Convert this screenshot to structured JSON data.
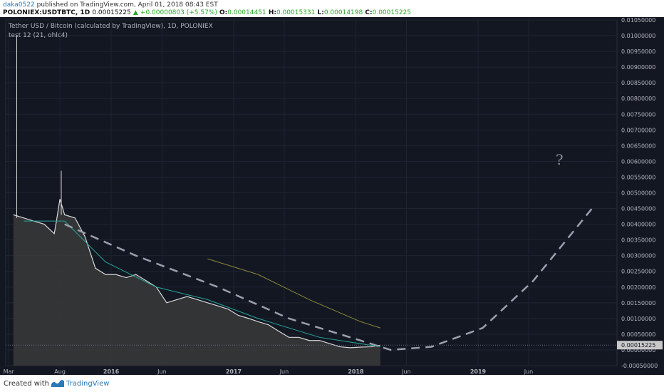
{
  "header": {
    "user": "daka0522",
    "published": "published on TradingView.com, April 01, 2018 08:43 EST",
    "symbol": "POLONIEX:USDTBTC, 1D",
    "last": "0.00015225",
    "change_arrow": "▲",
    "change": "+0.00000803 (+5.57%)",
    "o_label": "O:",
    "o_value": "0.00014451",
    "h_label": "H:",
    "h_value": "0.00015331",
    "l_label": "L:",
    "l_value": "0.00014198",
    "c_label": "C:",
    "c_value": "0.00015225"
  },
  "legend": {
    "title": "Tether USD / Bitcoin (calculated by TradingView), 1D, POLONIEX",
    "indicator": "test 12 (21, ohlc4)"
  },
  "annotation": "?",
  "footer": {
    "created": "Created with",
    "brand": "TradingView",
    "logo_icon": "tradingview-logo-icon"
  },
  "colors": {
    "background": "#131722",
    "grid": "#1f2431",
    "price_line": "#d9d9d9",
    "area_fill": "#3a3a3a",
    "teal": "#26a69a",
    "olive": "#8a8a3c",
    "pink": "#c2407a",
    "dashed": "#9aa0ac",
    "axis_text": "#b2b5be",
    "last_tag": "#c8c8c8"
  },
  "chart_data": {
    "type": "line",
    "title": "Tether USD / Bitcoin (calculated by TradingView), 1D, POLONIEX",
    "y_scale": "linear",
    "ylim": [
      -0.0005,
      0.0105
    ],
    "y_ticks": [
      "0.01050000",
      "0.01000000",
      "0.00950000",
      "0.00900000",
      "0.00850000",
      "0.00800000",
      "0.00750000",
      "0.00700000",
      "0.00650000",
      "0.00600000",
      "0.00550000",
      "0.00500000",
      "0.00450000",
      "0.00400000",
      "0.00350000",
      "0.00300000",
      "0.00250000",
      "0.00200000",
      "0.00150000",
      "0.00100000",
      "0.00050000",
      "0.00000000",
      "-0.00050000"
    ],
    "x_ticks": [
      "Mar",
      "Aug",
      "2016",
      "Jun",
      "2017",
      "Jun",
      "2018",
      "Jun",
      "2019",
      "Jun"
    ],
    "last_price_label": "0.00015225",
    "last_price": 0.00015225,
    "series": [
      {
        "kind": "price",
        "x": [
          "2015-03",
          "2015-04",
          "2015-05",
          "2015-06",
          "2015-07",
          "2015-07-20",
          "2015-08-01",
          "2015-08-15",
          "2015-09",
          "2015-10",
          "2015-11",
          "2015-12",
          "2016-01",
          "2016-02",
          "2016-03",
          "2016-04",
          "2016-05",
          "2016-06",
          "2016-07",
          "2016-08",
          "2016-09",
          "2016-10",
          "2016-11",
          "2016-12",
          "2017-01",
          "2017-02",
          "2017-03",
          "2017-04",
          "2017-05",
          "2017-06",
          "2017-07",
          "2017-08",
          "2017-09",
          "2017-10",
          "2017-11",
          "2017-12",
          "2018-01",
          "2018-02",
          "2018-03"
        ],
        "values": [
          0.0043,
          0.0042,
          0.0041,
          0.004,
          0.0037,
          0.004,
          0.0048,
          0.0043,
          0.0042,
          0.0036,
          0.0026,
          0.0024,
          0.0024,
          0.0023,
          0.0024,
          0.0022,
          0.002,
          0.0015,
          0.0016,
          0.0017,
          0.0016,
          0.0015,
          0.0014,
          0.0013,
          0.0011,
          0.001,
          0.0009,
          0.0008,
          0.0006,
          0.0004,
          0.0004,
          0.0003,
          0.0003,
          0.0002,
          0.0001,
          7e-05,
          9e-05,
          0.0001,
          0.00015
        ]
      },
      {
        "kind": "projection",
        "x": [
          "2015-08",
          "2016-03",
          "2016-11",
          "2017-06",
          "2018-01",
          "2018-04",
          "2018-08",
          "2019-01",
          "2019-06",
          "2019-12"
        ],
        "values": [
          0.004,
          0.003,
          0.002,
          0.001,
          0.0003,
          0.0,
          0.0001,
          0.0007,
          0.0022,
          0.0046
        ]
      }
    ],
    "grid": true,
    "legend_position": "top-left"
  }
}
